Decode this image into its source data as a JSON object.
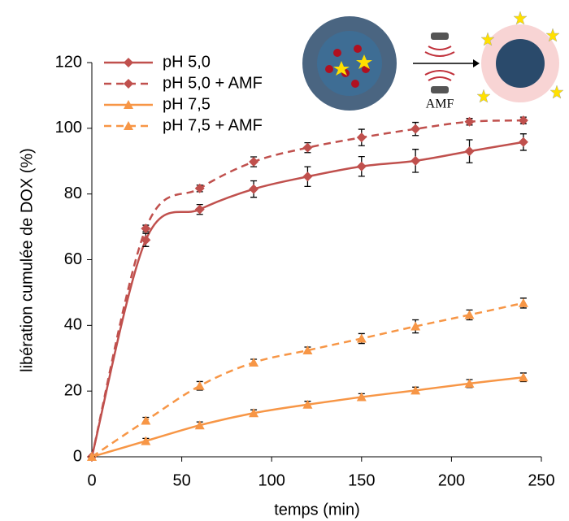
{
  "chart_data": {
    "type": "line",
    "xlabel": "temps (min)",
    "ylabel": "libération cumulée de DOX (%)",
    "inset_label": "AMF",
    "x": [
      0,
      30,
      60,
      90,
      120,
      150,
      180,
      210,
      240
    ],
    "xlim": [
      0,
      250
    ],
    "xticks": [
      0,
      50,
      100,
      150,
      200,
      250
    ],
    "ylim": [
      0,
      120
    ],
    "yticks": [
      0,
      20,
      40,
      60,
      80,
      100,
      120
    ],
    "grid": false,
    "legend": "top-left",
    "series": [
      {
        "name": "pH 5,0",
        "color": "#c0504d",
        "dash": false,
        "marker": "diamond",
        "values": [
          0,
          66,
          75.3,
          81.5,
          85.3,
          88.4,
          90.1,
          93,
          95.8
        ],
        "errors": [
          0,
          2,
          1.5,
          2.5,
          3,
          3,
          3.5,
          3.5,
          2.5
        ]
      },
      {
        "name": "pH 5,0 + AMF",
        "color": "#c0504d",
        "dash": true,
        "marker": "diamond",
        "values": [
          0,
          69.5,
          81.7,
          89.8,
          94.1,
          97.2,
          99.8,
          102,
          102.4
        ],
        "errors": [
          0,
          1,
          1,
          1.5,
          1.5,
          2.5,
          2,
          1,
          1
        ]
      },
      {
        "name": "pH 7,5",
        "color": "#f79646",
        "dash": false,
        "marker": "triangle",
        "values": [
          0,
          4.8,
          9.6,
          13.3,
          15.9,
          18.2,
          20.2,
          22.3,
          24.2
        ],
        "errors": [
          0,
          0.8,
          1,
          1,
          1,
          1,
          1,
          1.2,
          1.3
        ]
      },
      {
        "name": "pH 7,5 + AMF",
        "color": "#f79646",
        "dash": true,
        "marker": "triangle",
        "values": [
          0,
          11,
          21.6,
          28.7,
          32.4,
          36,
          39.7,
          43.2,
          46.8
        ],
        "errors": [
          0,
          1,
          1.3,
          1,
          1,
          1.5,
          2,
          1.5,
          1.5
        ]
      }
    ]
  }
}
